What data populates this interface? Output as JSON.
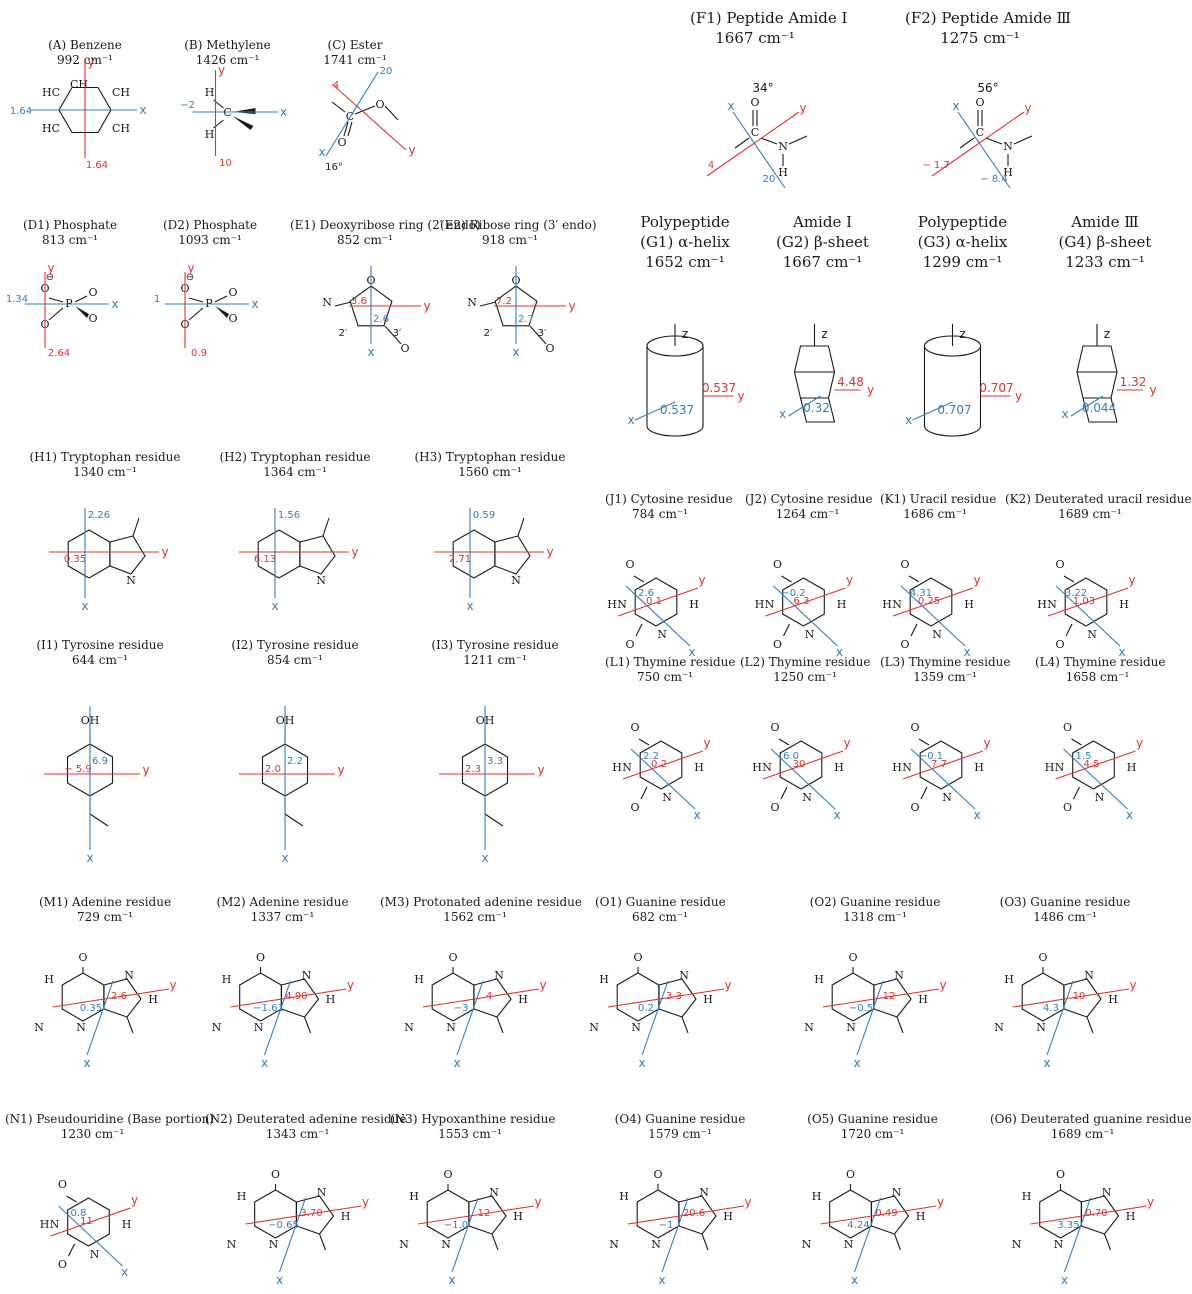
{
  "colors": {
    "blue": "#2f7fc1",
    "red": "#e4312b",
    "ink": "#1a1a1a"
  },
  "panels": [
    {
      "id": "A",
      "title": "(A) Benzene",
      "freq": "992 cm⁻¹",
      "kind": "benzene",
      "big": false,
      "blue": {
        "val": "1.64",
        "label": "x"
      },
      "red": {
        "val": "1.64",
        "label": "y"
      }
    },
    {
      "id": "B",
      "title": "(B) Methylene",
      "freq": "1426 cm⁻¹",
      "kind": "methylene",
      "big": false,
      "blue": {
        "val": "−2",
        "label": "x"
      },
      "red": {
        "val": "10",
        "label": "y"
      }
    },
    {
      "id": "C",
      "title": "(C) Ester",
      "freq": "1741 cm⁻¹",
      "kind": "ester",
      "big": false,
      "blue": {
        "val": "20",
        "label": "x"
      },
      "red": {
        "val": "4",
        "label": "y"
      },
      "angle": "16°"
    },
    {
      "id": "F1",
      "title": "(F1) Peptide Amide Ⅰ",
      "freq": "1667 cm⁻¹",
      "kind": "peptide",
      "big": true,
      "blue": {
        "val": "20",
        "label": "x"
      },
      "red": {
        "val": "4",
        "label": "y"
      },
      "angle": "34°"
    },
    {
      "id": "F2",
      "title": "(F2) Peptide Amide Ⅲ",
      "freq": "1275 cm⁻¹",
      "kind": "peptide",
      "big": true,
      "blue": {
        "val": "− 8.4",
        "label": "x"
      },
      "red": {
        "val": "− 1.7",
        "label": "y"
      },
      "angle": "56°"
    },
    {
      "id": "D1",
      "title": "(D1) Phosphate",
      "freq": "813 cm⁻¹",
      "kind": "phosphate",
      "big": false,
      "blue": {
        "val": "1.34",
        "label": "x"
      },
      "red": {
        "val": "2.64",
        "label": "y"
      }
    },
    {
      "id": "D2",
      "title": "(D2) Phosphate",
      "freq": "1093 cm⁻¹",
      "kind": "phosphate",
      "big": false,
      "blue": {
        "val": "1",
        "label": "x"
      },
      "red": {
        "val": "0.9",
        "label": "y"
      }
    },
    {
      "id": "E1",
      "title": "(E1) Deoxyribose ring (2′ endo)",
      "freq": "852 cm⁻¹",
      "kind": "sugar",
      "big": false,
      "blue": {
        "val": "2.6",
        "label": "x"
      },
      "red": {
        "val": "3.6",
        "label": "y"
      }
    },
    {
      "id": "E2",
      "title": "(E2) Ribose ring (3′ endo)",
      "freq": "918 cm⁻¹",
      "kind": "sugar",
      "big": false,
      "blue": {
        "val": "2.7",
        "label": "x"
      },
      "red": {
        "val": "7.2",
        "label": "y"
      }
    },
    {
      "id": "G1",
      "title": "(G1) α-helix",
      "group": "Polypeptide",
      "freq": "1652 cm⁻¹",
      "kind": "cylinder",
      "big": true,
      "blue": {
        "val": "0.537",
        "label": "x"
      },
      "red": {
        "val": "0.537",
        "label": "y"
      }
    },
    {
      "id": "G2",
      "title": "(G2) β-sheet",
      "group": "Amide Ⅰ",
      "freq": "1667 cm⁻¹",
      "kind": "sheet",
      "big": true,
      "blue": {
        "val": "0.32",
        "label": "x"
      },
      "red": {
        "val": "4.48",
        "label": "y"
      }
    },
    {
      "id": "G3",
      "title": "(G3) α-helix",
      "group": "Polypeptide",
      "freq": "1299 cm⁻¹",
      "kind": "cylinder",
      "big": true,
      "blue": {
        "val": "0.707",
        "label": "x"
      },
      "red": {
        "val": "0.707",
        "label": "y"
      }
    },
    {
      "id": "G4",
      "title": "(G4) β-sheet",
      "group": "Amide Ⅲ",
      "freq": "1233 cm⁻¹",
      "kind": "sheet",
      "big": true,
      "blue": {
        "val": "0.044",
        "label": "x"
      },
      "red": {
        "val": "1.32",
        "label": "y"
      }
    },
    {
      "id": "H1",
      "title": "(H1) Tryptophan residue",
      "freq": "1340 cm⁻¹",
      "kind": "indole",
      "big": false,
      "blue": {
        "val": "2.26",
        "label": "x"
      },
      "red": {
        "val": "0.35",
        "label": "y"
      }
    },
    {
      "id": "H2",
      "title": "(H2) Tryptophan residue",
      "freq": "1364 cm⁻¹",
      "kind": "indole",
      "big": false,
      "blue": {
        "val": "1.56",
        "label": "x"
      },
      "red": {
        "val": "6.13",
        "label": "y"
      }
    },
    {
      "id": "H3",
      "title": "(H3) Tryptophan residue",
      "freq": "1560 cm⁻¹",
      "kind": "indole",
      "big": false,
      "blue": {
        "val": "0.59",
        "label": "x"
      },
      "red": {
        "val": "2.71",
        "label": "y"
      }
    },
    {
      "id": "J1",
      "title": "(J1) Cytosine residue",
      "freq": "784 cm⁻¹",
      "kind": "pyrimidine",
      "big": false,
      "blue": {
        "val": "2.6",
        "label": "x"
      },
      "red": {
        "val": "0.1",
        "label": "y"
      }
    },
    {
      "id": "J2",
      "title": "(J2) Cytosine residue",
      "freq": "1264 cm⁻¹",
      "kind": "pyrimidine",
      "big": false,
      "blue": {
        "val": "−0.2",
        "label": "x"
      },
      "red": {
        "val": "6.3",
        "label": "y"
      }
    },
    {
      "id": "K1",
      "title": "(K1) Uracil residue",
      "freq": "1686 cm⁻¹",
      "kind": "pyrimidine",
      "big": false,
      "blue": {
        "val": "4.31",
        "label": "x"
      },
      "red": {
        "val": "0.25",
        "label": "y"
      }
    },
    {
      "id": "K2",
      "title": "(K2) Deuterated uracil residue",
      "freq": "1689 cm⁻¹",
      "kind": "pyrimidine",
      "big": false,
      "blue": {
        "val": "3.22",
        "label": "x"
      },
      "red": {
        "val": "1.03",
        "label": "y"
      }
    },
    {
      "id": "I1",
      "title": "(I1) Tyrosine residue",
      "freq": "644 cm⁻¹",
      "kind": "phenol",
      "big": false,
      "blue": {
        "val": "6.9",
        "label": "x"
      },
      "red": {
        "val": "− 5.9",
        "label": "y"
      }
    },
    {
      "id": "I2",
      "title": "(I2) Tyrosine residue",
      "freq": "854 cm⁻¹",
      "kind": "phenol",
      "big": false,
      "blue": {
        "val": "2.2",
        "label": "x"
      },
      "red": {
        "val": "2.0",
        "label": "y"
      }
    },
    {
      "id": "I3",
      "title": "(I3) Tyrosine residue",
      "freq": "1211 cm⁻¹",
      "kind": "phenol",
      "big": false,
      "blue": {
        "val": "3.3",
        "label": "x"
      },
      "red": {
        "val": "2.3",
        "label": "y"
      }
    },
    {
      "id": "L1",
      "title": "(L1) Thymine residue",
      "freq": "750 cm⁻¹",
      "kind": "pyrimidine",
      "big": false,
      "blue": {
        "val": "2.2",
        "label": "x"
      },
      "red": {
        "val": "0.2",
        "label": "y"
      }
    },
    {
      "id": "L2",
      "title": "(L2) Thymine residue",
      "freq": "1250 cm⁻¹",
      "kind": "pyrimidine",
      "big": false,
      "blue": {
        "val": "6.0",
        "label": "x"
      },
      "red": {
        "val": "30",
        "label": "y"
      }
    },
    {
      "id": "L3",
      "title": "(L3) Thymine residue",
      "freq": "1359 cm⁻¹",
      "kind": "pyrimidine",
      "big": false,
      "blue": {
        "val": "−0.1",
        "label": "x"
      },
      "red": {
        "val": "7.7",
        "label": "y"
      }
    },
    {
      "id": "L4",
      "title": "(L4) Thymine residue",
      "freq": "1658 cm⁻¹",
      "kind": "pyrimidine",
      "big": false,
      "blue": {
        "val": "1.5",
        "label": "x"
      },
      "red": {
        "val": "4.5",
        "label": "y"
      }
    },
    {
      "id": "M1",
      "title": "(M1) Adenine residue",
      "freq": "729 cm⁻¹",
      "kind": "purine",
      "big": false,
      "blue": {
        "val": "0.35",
        "label": "x"
      },
      "red": {
        "val": "2.6",
        "label": "y"
      }
    },
    {
      "id": "M2",
      "title": "(M2) Adenine residue",
      "freq": "1337 cm⁻¹",
      "kind": "purine",
      "big": false,
      "blue": {
        "val": "−1.61",
        "label": "x"
      },
      "red": {
        "val": "4.90",
        "label": "y"
      }
    },
    {
      "id": "M3",
      "title": "(M3) Protonated adenine residue",
      "freq": "1562 cm⁻¹",
      "kind": "purine",
      "big": false,
      "blue": {
        "val": "−3",
        "label": "x"
      },
      "red": {
        "val": "4",
        "label": "y"
      }
    },
    {
      "id": "O1",
      "title": "(O1) Guanine residue",
      "freq": "682 cm⁻¹",
      "kind": "purine",
      "big": false,
      "blue": {
        "val": "0.2",
        "label": "x"
      },
      "red": {
        "val": "3.3",
        "label": "y"
      }
    },
    {
      "id": "O2",
      "title": "(O2) Guanine residue",
      "freq": "1318 cm⁻¹",
      "kind": "purine",
      "big": false,
      "blue": {
        "val": "−0.5",
        "label": "x"
      },
      "red": {
        "val": "12",
        "label": "y"
      }
    },
    {
      "id": "O3",
      "title": "(O3) Guanine residue",
      "freq": "1486 cm⁻¹",
      "kind": "purine",
      "big": false,
      "blue": {
        "val": "4.3",
        "label": "x"
      },
      "red": {
        "val": "10",
        "label": "y"
      }
    },
    {
      "id": "N1",
      "title": "(N1) Pseudouridine (Base portion)",
      "freq": "1230 cm⁻¹",
      "kind": "pyrimidine",
      "big": false,
      "blue": {
        "val": "0.8",
        "label": "x"
      },
      "red": {
        "val": "11",
        "label": "y"
      }
    },
    {
      "id": "N2",
      "title": "(N2) Deuterated adenine residue",
      "freq": "1343 cm⁻¹",
      "kind": "purine",
      "big": false,
      "blue": {
        "val": "−0.65",
        "label": "x"
      },
      "red": {
        "val": "3.70",
        "label": "y"
      }
    },
    {
      "id": "N3",
      "title": "(N3) Hypoxanthine residue",
      "freq": "1553 cm⁻¹",
      "kind": "purine",
      "big": false,
      "blue": {
        "val": "−1.0",
        "label": "x"
      },
      "red": {
        "val": "12",
        "label": "y"
      }
    },
    {
      "id": "O4",
      "title": "(O4) Guanine residue",
      "freq": "1579 cm⁻¹",
      "kind": "purine",
      "big": false,
      "blue": {
        "val": "−1",
        "label": "x"
      },
      "red": {
        "val": "20.6",
        "label": "y"
      }
    },
    {
      "id": "O5",
      "title": "(O5) Guanine residue",
      "freq": "1720 cm⁻¹",
      "kind": "purine",
      "big": false,
      "blue": {
        "val": "4.24",
        "label": "x"
      },
      "red": {
        "val": "0.49",
        "label": "y"
      }
    },
    {
      "id": "O6",
      "title": "(O6) Deuterated guanine residue",
      "freq": "1689 cm⁻¹",
      "kind": "purine",
      "big": false,
      "blue": {
        "val": "3.35",
        "label": "x"
      },
      "red": {
        "val": "0.70",
        "label": "y"
      }
    }
  ]
}
